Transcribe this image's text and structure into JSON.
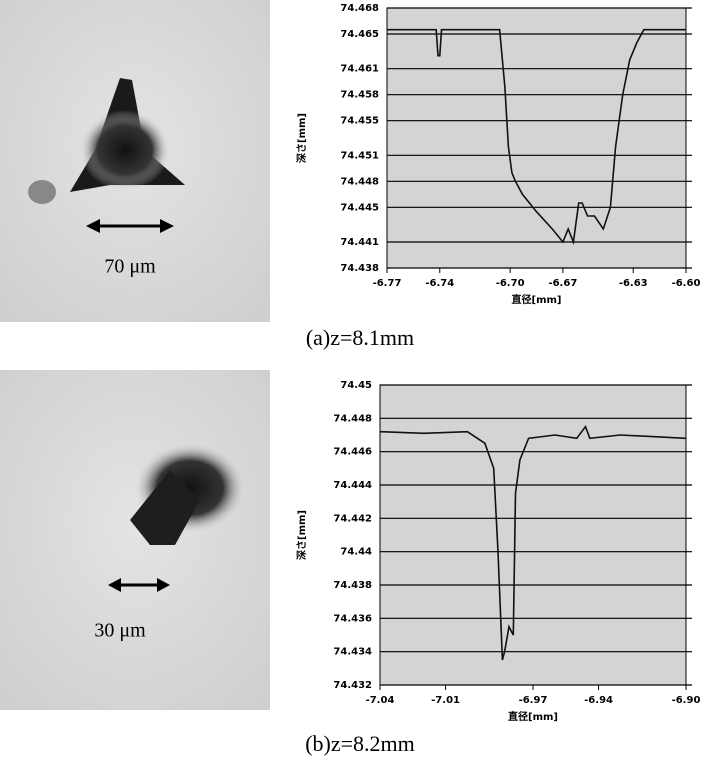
{
  "chart_data": [
    {
      "type": "line",
      "y_label": "深さ[mm]",
      "x_label": "直径[mm]",
      "scale_label": "70 μm",
      "caption": "(a)z=8.1mm",
      "xlim": [
        -6.77,
        -6.6
      ],
      "ylim": [
        74.438,
        74.468
      ],
      "xticks": [
        -6.77,
        -6.74,
        {
          "value": -6.7,
          "label": "-6.70"
        },
        -6.67,
        -6.63,
        {
          "value": -6.6,
          "label": "-6.60"
        }
      ],
      "yticks": [
        74.438,
        74.441,
        74.445,
        74.448,
        74.451,
        74.455,
        74.458,
        74.461,
        74.465,
        74.468
      ],
      "grid": true,
      "series": [
        {
          "color": "#111111",
          "x": [
            -6.77,
            -6.742,
            -6.741,
            -6.74,
            -6.739,
            -6.706,
            -6.703,
            -6.701,
            -6.699,
            -6.697,
            -6.693,
            -6.685,
            -6.676,
            -6.67,
            -6.667,
            -6.664,
            -6.661,
            -6.659,
            -6.656,
            -6.652,
            -6.647,
            -6.643,
            -6.64,
            -6.636,
            -6.632,
            -6.628,
            -6.624,
            -6.62,
            -6.6
          ],
          "values": [
            74.4655,
            74.4655,
            74.4625,
            74.4625,
            74.4655,
            74.4655,
            74.459,
            74.452,
            74.449,
            74.448,
            74.4465,
            74.4445,
            74.4425,
            74.441,
            74.4425,
            74.441,
            74.4455,
            74.4455,
            74.444,
            74.444,
            74.4425,
            74.445,
            74.452,
            74.458,
            74.462,
            74.464,
            74.4655,
            74.4655,
            74.4655
          ]
        }
      ]
    },
    {
      "type": "line",
      "y_label": "深さ[mm]",
      "x_label": "直径[mm]",
      "scale_label": "30 μm",
      "caption": "(b)z=8.2mm",
      "xlim": [
        -7.04,
        -6.9
      ],
      "ylim": [
        74.432,
        74.45
      ],
      "xticks": [
        -7.04,
        -7.01,
        -6.97,
        -6.94,
        {
          "value": -6.9,
          "label": "-6.90"
        }
      ],
      "yticks": [
        74.432,
        74.434,
        74.436,
        74.438,
        74.44,
        74.442,
        74.444,
        74.446,
        74.448,
        74.45
      ],
      "grid": true,
      "series": [
        {
          "color": "#111111",
          "x": [
            -7.04,
            -7.02,
            -7.0,
            -6.992,
            -6.988,
            -6.986,
            -6.984,
            -6.983,
            -6.981,
            -6.979,
            -6.978,
            -6.976,
            -6.972,
            -6.96,
            -6.95,
            -6.946,
            -6.944,
            -6.93,
            -6.9
          ],
          "values": [
            74.4472,
            74.4471,
            74.4472,
            74.4465,
            74.445,
            74.44,
            74.4335,
            74.434,
            74.4355,
            74.435,
            74.4435,
            74.4455,
            74.4468,
            74.447,
            74.4468,
            74.4475,
            74.4468,
            74.447,
            74.4468
          ]
        }
      ]
    }
  ]
}
